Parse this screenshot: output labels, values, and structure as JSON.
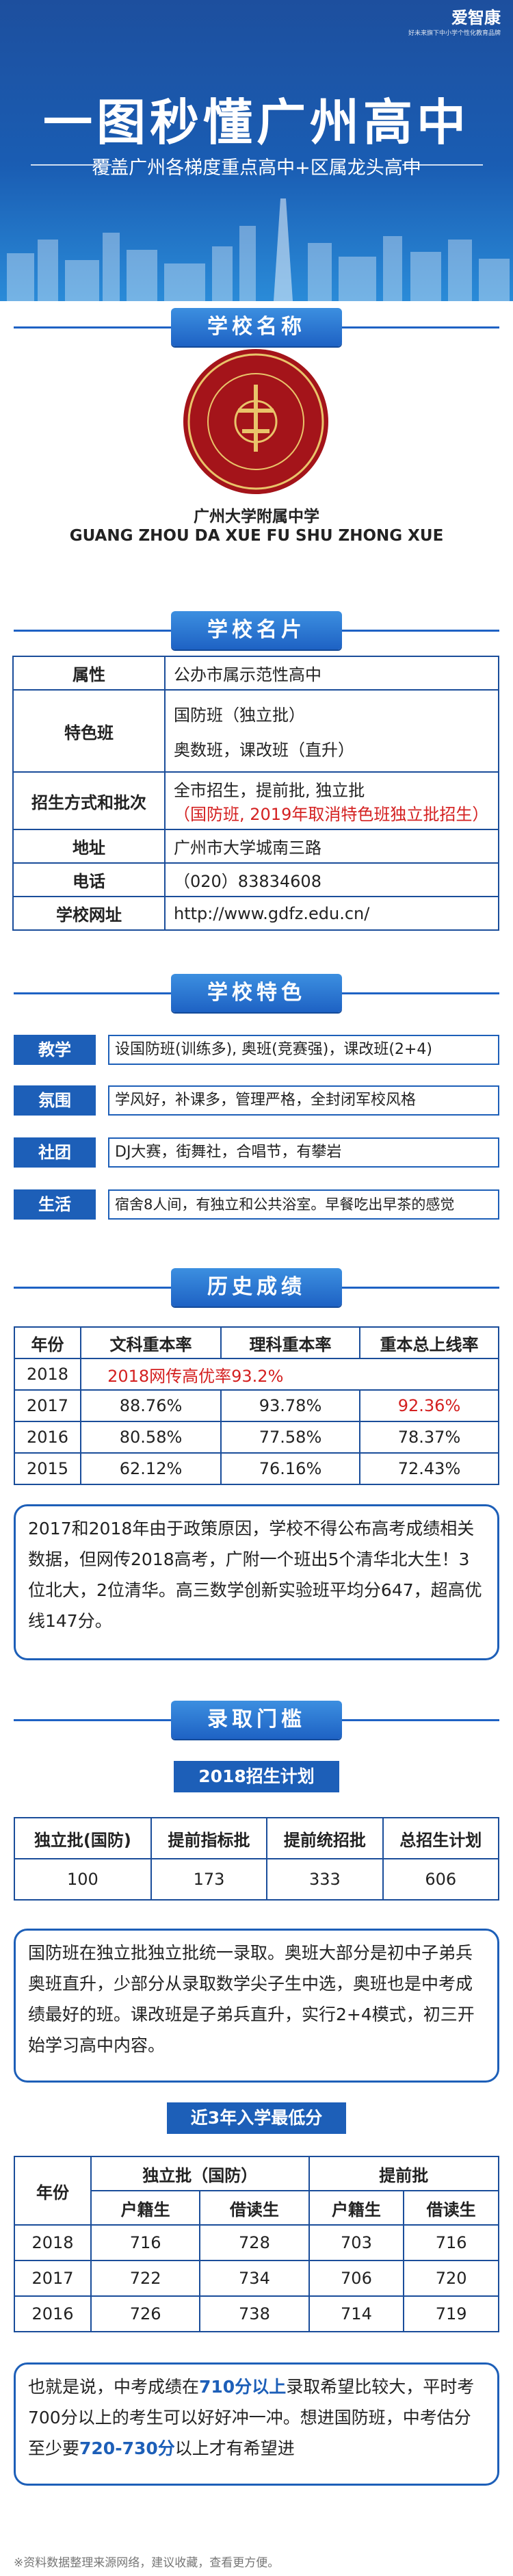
{
  "brand": {
    "name": "爱智康",
    "sub": "好未来旗下中小学个性化教育品牌"
  },
  "header": {
    "title": "一图秒懂广州高中",
    "subtitle": "覆盖广州各梯度重点高中+区属龙头高中"
  },
  "sections": {
    "name": "学校名称",
    "card": "学校名片",
    "features": "学校特色",
    "history": "历史成绩",
    "admission": "录取门槛"
  },
  "school": {
    "logo_text": "广州大学附属中学",
    "name": "广州大学附属中学",
    "pinyin": "GUANG ZHOU DA XUE FU SHU ZHONG XUE"
  },
  "info": {
    "attr_k": "属性",
    "attr_v": "公办市属示范性高中",
    "class_k": "特色班",
    "class_v1": "国防班（独立批）",
    "class_v2": "奥数班，课改班（直升）",
    "enroll_k": "招生方式和批次",
    "enroll_v1": "全市招生，提前批, 独立批",
    "enroll_v2": "（国防班, 2019年取消特色班独立批招生）",
    "addr_k": "地址",
    "addr_v": "广州市大学城南三路",
    "tel_k": "电话",
    "tel_v": "（020）83834608",
    "web_k": "学校网址",
    "web_v": "http://www.gdfz.edu.cn/"
  },
  "features": [
    {
      "label": "教学",
      "text": "设国防班(训练多), 奥班(竞赛强)，课改班(2+4)"
    },
    {
      "label": "氛围",
      "text": "学风好，补课多，管理严格，全封闭军校风格"
    },
    {
      "label": "社团",
      "text": "DJ大赛，街舞社，合唱节，有攀岩"
    },
    {
      "label": "生活",
      "text": "宿舍8人间，有独立和公共浴室。早餐吃出早茶的感觉"
    }
  ],
  "history": {
    "headers": [
      "年份",
      "文科重本率",
      "理科重本率",
      "重本总上线率"
    ],
    "r2018_year": "2018",
    "r2018_note": "2018网传高优率93.2%",
    "r2017": [
      "2017",
      "88.76%",
      "93.78%",
      "92.36%"
    ],
    "r2016": [
      "2016",
      "80.58%",
      "77.58%",
      "78.37%"
    ],
    "r2015": [
      "2015",
      "62.12%",
      "76.16%",
      "72.43%"
    ],
    "note": "2017和2018年由于政策原因，学校不得公布高考成绩相关数据，但网传2018高考，广附一个班出5个清华北大生！3位北大，2位清华。高三数学创新实验班平均分647，超高优线147分。"
  },
  "plan": {
    "title": "2018招生计划",
    "headers": [
      "独立批(国防)",
      "提前指标批",
      "提前统招批",
      "总招生计划"
    ],
    "values": [
      "100",
      "173",
      "333",
      "606"
    ],
    "note": "国防班在独立批独立批统一录取。奥班大部分是初中子弟兵奥班直升，少部分从录取数学尖子生中选，奥班也是中考成绩最好的班。课改班是子弟兵直升，实行2+4模式，初三开始学习高中内容。"
  },
  "scores": {
    "title": "近3年入学最低分",
    "group1": "独立批（国防）",
    "group2": "提前批",
    "year_h": "年份",
    "sub": [
      "户籍生",
      "借读生",
      "户籍生",
      "借读生"
    ],
    "rows": [
      [
        "2018",
        "716",
        "728",
        "703",
        "716"
      ],
      [
        "2017",
        "722",
        "734",
        "706",
        "720"
      ],
      [
        "2016",
        "726",
        "738",
        "714",
        "719"
      ]
    ]
  },
  "final_note": {
    "p1": "也就是说，中考成绩在",
    "h1": "710分以上",
    "p2": "录取希望比较大，平时考700分以上的考生可以好好冲一冲。想进国防班，中考估分至少要",
    "h2": "720-730分",
    "p3": "以上才有希望进"
  },
  "footer": "※资料数据整理来源网络，建议收藏，查看更方便。",
  "colors": {
    "brand_blue": "#1d5fb8",
    "accent_red": "#d42020",
    "logo_red": "#a4141a"
  }
}
